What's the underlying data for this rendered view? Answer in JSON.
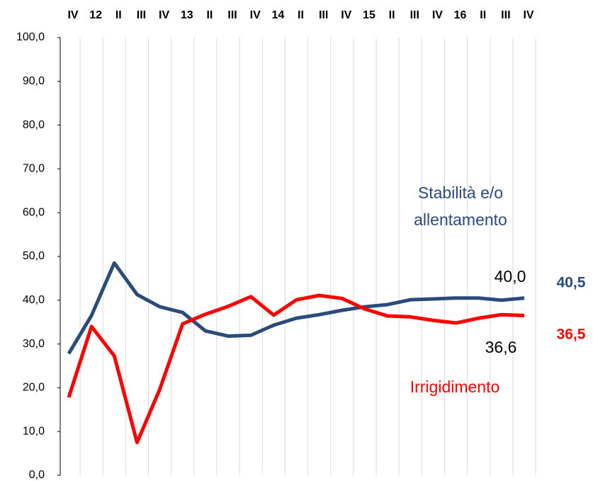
{
  "chart_data": {
    "type": "line",
    "categories": [
      "IV",
      "12",
      "II",
      "III",
      "IV",
      "13",
      "II",
      "III",
      "IV",
      "14",
      "II",
      "III",
      "IV",
      "15",
      "II",
      "III",
      "IV",
      "16",
      "II",
      "III",
      "IV"
    ],
    "series": [
      {
        "name": "Stabilità e/o allentamento",
        "color": "#2b4b7c",
        "values": [
          27.8,
          36.5,
          48.5,
          41.3,
          38.5,
          37.2,
          33.0,
          31.8,
          32.0,
          34.3,
          35.9,
          36.7,
          37.7,
          38.5,
          39.0,
          40.1,
          40.3,
          40.5,
          40.5,
          40.0,
          40.5
        ],
        "end_label": "40,5"
      },
      {
        "name": "Irrigidimento",
        "color": "#ff0000",
        "values": [
          17.8,
          34.0,
          27.3,
          7.5,
          19.7,
          34.6,
          36.8,
          38.6,
          40.8,
          36.6,
          40.1,
          41.1,
          40.4,
          38.0,
          36.4,
          36.2,
          35.4,
          34.8,
          35.9,
          36.7,
          36.5
        ],
        "end_label": "36,5"
      }
    ],
    "annotations": [
      "40,0",
      "36,6"
    ],
    "ylim": [
      0,
      100
    ],
    "yticks": [
      {
        "value": 0,
        "label": "0,0"
      },
      {
        "value": 10,
        "label": "10,0"
      },
      {
        "value": 20,
        "label": "20,0"
      },
      {
        "value": 30,
        "label": "30,0"
      },
      {
        "value": 40,
        "label": "40,0"
      },
      {
        "value": 50,
        "label": "50,0"
      },
      {
        "value": 60,
        "label": "60,0"
      },
      {
        "value": 70,
        "label": "70,0"
      },
      {
        "value": 80,
        "label": "80,0"
      },
      {
        "value": 90,
        "label": "90,0"
      },
      {
        "value": 100,
        "label": "100,0"
      }
    ],
    "grid": true
  }
}
